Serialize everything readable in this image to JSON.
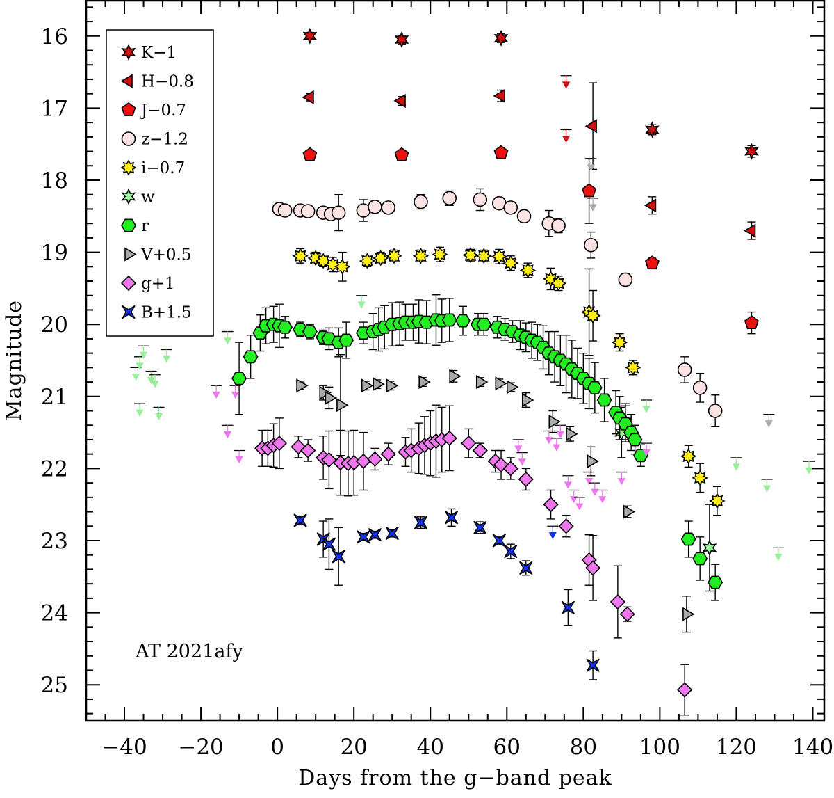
{
  "chart_data": {
    "type": "scatter",
    "title": "",
    "xlabel": "Days from the g−band peak",
    "ylabel": "Magnitude",
    "xlim": [
      -50,
      143
    ],
    "ylim": [
      25.5,
      15.5
    ],
    "y_inverted": true,
    "grid": false,
    "legend_position": "top-left",
    "annotation": "AT 2021afy",
    "x_ticks": [
      -40,
      -20,
      0,
      20,
      40,
      60,
      80,
      100,
      120,
      140
    ],
    "x_tick_labels": [
      "−40",
      "−20",
      "0",
      "20",
      "40",
      "60",
      "80",
      "100",
      "120",
      "140"
    ],
    "y_ticks": [
      16,
      17,
      18,
      19,
      20,
      21,
      22,
      23,
      24,
      25
    ],
    "y_tick_labels": [
      "16",
      "17",
      "18",
      "19",
      "20",
      "21",
      "22",
      "23",
      "24",
      "25"
    ],
    "series": [
      {
        "name": "K−1",
        "label": "K−1",
        "marker": "star6",
        "color": "#cc1111",
        "points": [
          [
            8.5,
            16.0
          ],
          [
            32.5,
            16.05
          ],
          [
            58.5,
            16.03
          ],
          [
            98,
            17.3
          ],
          [
            124,
            17.6
          ]
        ],
        "errors": [
          0.05,
          0.06,
          0.06,
          0.07,
          0.08
        ],
        "upper_limits": []
      },
      {
        "name": "H−0.8",
        "label": "H−0.8",
        "marker": "triangle-left",
        "color": "#cc1111",
        "points": [
          [
            8.5,
            16.85
          ],
          [
            32.5,
            16.9
          ],
          [
            58.5,
            16.83
          ],
          [
            82.5,
            17.25
          ],
          [
            98,
            18.35
          ],
          [
            124,
            18.7
          ]
        ],
        "errors": [
          0.05,
          0.06,
          0.08,
          0.6,
          0.12,
          0.12
        ],
        "upper_limits": [
          [
            75.5,
            16.55
          ],
          [
            75.5,
            17.3
          ]
        ]
      },
      {
        "name": "J−0.7",
        "label": "J−0.7",
        "marker": "pentagon",
        "color": "#ee1111",
        "points": [
          [
            8.5,
            17.65
          ],
          [
            32.5,
            17.65
          ],
          [
            58.5,
            17.62
          ],
          [
            81.5,
            18.15
          ],
          [
            98,
            19.15
          ],
          [
            124,
            19.98
          ]
        ],
        "errors": [
          0.03,
          0.03,
          0.04,
          0.45,
          0.08,
          0.15
        ],
        "upper_limits": []
      },
      {
        "name": "z−1.2",
        "label": "z−1.2",
        "marker": "circle",
        "color": "#fbe3e3",
        "points": [
          [
            0.5,
            18.4
          ],
          [
            2,
            18.42
          ],
          [
            6,
            18.42
          ],
          [
            8,
            18.43
          ],
          [
            12,
            18.45
          ],
          [
            14,
            18.47
          ],
          [
            16,
            18.45
          ],
          [
            22.5,
            18.42
          ],
          [
            25.5,
            18.37
          ],
          [
            29,
            18.38
          ],
          [
            37.5,
            18.3
          ],
          [
            45,
            18.25
          ],
          [
            53,
            18.27
          ],
          [
            58,
            18.32
          ],
          [
            61,
            18.38
          ],
          [
            64.5,
            18.5
          ],
          [
            71,
            18.6
          ],
          [
            73.5,
            18.63
          ],
          [
            82,
            18.9
          ],
          [
            91,
            19.38
          ],
          [
            106.5,
            20.63
          ],
          [
            110.5,
            20.88
          ],
          [
            114.5,
            21.2
          ]
        ],
        "errors": [
          0.04,
          0.04,
          0.04,
          0.05,
          0.05,
          0.06,
          0.25,
          0.15,
          0.08,
          0.07,
          0.1,
          0.1,
          0.15,
          0.08,
          0.08,
          0.08,
          0.18,
          0.1,
          0.18,
          0.08,
          0.18,
          0.2,
          0.22
        ],
        "upper_limits": []
      },
      {
        "name": "i−0.7",
        "label": "i−0.7",
        "marker": "starburst",
        "color": "#ffee11",
        "points": [
          [
            6,
            19.05
          ],
          [
            10,
            19.08
          ],
          [
            12,
            19.12
          ],
          [
            14.5,
            19.17
          ],
          [
            17,
            19.2
          ],
          [
            23.5,
            19.12
          ],
          [
            27,
            19.08
          ],
          [
            30.5,
            19.05
          ],
          [
            37.5,
            19.05
          ],
          [
            42.5,
            19.03
          ],
          [
            50.5,
            19.04
          ],
          [
            54,
            19.05
          ],
          [
            58,
            19.06
          ],
          [
            61,
            19.15
          ],
          [
            65.5,
            19.25
          ],
          [
            71.5,
            19.37
          ],
          [
            73.5,
            19.43
          ],
          [
            81.5,
            19.83
          ],
          [
            82.5,
            19.88
          ],
          [
            89.5,
            20.25
          ],
          [
            93,
            20.6
          ],
          [
            107.5,
            21.83
          ],
          [
            110.5,
            22.13
          ],
          [
            115,
            22.45
          ]
        ],
        "errors": [
          0.1,
          0.08,
          0.08,
          0.1,
          0.2,
          0.08,
          0.08,
          0.08,
          0.08,
          0.1,
          0.08,
          0.08,
          0.1,
          0.1,
          0.1,
          0.15,
          0.1,
          0.6,
          0.35,
          0.12,
          0.1,
          0.15,
          0.2,
          0.2
        ],
        "upper_limits": []
      },
      {
        "name": "w",
        "label": "w",
        "marker": "star6",
        "color": "#99ee99",
        "points": [
          [
            90,
            21.5
          ],
          [
            91,
            21.35
          ],
          [
            113,
            23.1
          ]
        ],
        "errors": [
          0.35,
          0.25,
          0.6
        ],
        "upper_limits": [
          [
            -37,
            20.6
          ],
          [
            -36,
            20.45
          ],
          [
            -35,
            20.3
          ],
          [
            -33,
            20.65
          ],
          [
            -32,
            20.7
          ],
          [
            -29,
            20.35
          ],
          [
            -36,
            21.1
          ],
          [
            -31,
            21.15
          ],
          [
            -13,
            20.1
          ],
          [
            22,
            19.6
          ],
          [
            96.5,
            21.05
          ],
          [
            120,
            21.85
          ],
          [
            128,
            22.15
          ],
          [
            131,
            23.1
          ],
          [
            139,
            21.9
          ]
        ]
      },
      {
        "name": "r",
        "label": "r",
        "marker": "hexagon",
        "color": "#22ee22",
        "points": [
          [
            -10,
            20.75
          ],
          [
            -7,
            20.45
          ],
          [
            -4.5,
            20.12
          ],
          [
            -3,
            20.02
          ],
          [
            -1,
            20.0
          ],
          [
            0.5,
            20.02
          ],
          [
            2,
            20.04
          ],
          [
            6,
            20.07
          ],
          [
            8.5,
            20.1
          ],
          [
            12,
            20.18
          ],
          [
            13.5,
            20.2
          ],
          [
            16,
            20.25
          ],
          [
            18,
            20.22
          ],
          [
            22.5,
            20.12
          ],
          [
            25,
            20.1
          ],
          [
            26.5,
            20.07
          ],
          [
            28,
            20.04
          ],
          [
            30,
            20.0
          ],
          [
            32,
            19.99
          ],
          [
            33.5,
            19.97
          ],
          [
            35.5,
            19.97
          ],
          [
            37,
            19.96
          ],
          [
            39,
            19.97
          ],
          [
            41.5,
            19.94
          ],
          [
            43,
            19.95
          ],
          [
            45,
            19.94
          ],
          [
            48.5,
            19.95
          ],
          [
            52.5,
            20.0
          ],
          [
            54,
            20.0
          ],
          [
            57.5,
            20.04
          ],
          [
            59.5,
            20.07
          ],
          [
            61.5,
            20.1
          ],
          [
            63.5,
            20.15
          ],
          [
            65,
            20.18
          ],
          [
            66.5,
            20.22
          ],
          [
            68,
            20.25
          ],
          [
            69.5,
            20.32
          ],
          [
            71,
            20.4
          ],
          [
            72.5,
            20.45
          ],
          [
            74,
            20.5
          ],
          [
            75.5,
            20.55
          ],
          [
            77,
            20.62
          ],
          [
            78.5,
            20.68
          ],
          [
            80,
            20.75
          ],
          [
            81.5,
            20.82
          ],
          [
            83,
            20.88
          ],
          [
            85.5,
            21.05
          ],
          [
            88.5,
            21.22
          ],
          [
            89.5,
            21.3
          ],
          [
            91,
            21.38
          ],
          [
            92.5,
            21.5
          ],
          [
            93.5,
            21.6
          ],
          [
            95,
            21.82
          ],
          [
            107.5,
            22.98
          ],
          [
            110.5,
            23.25
          ],
          [
            114.5,
            23.58
          ]
        ],
        "errors": [
          0.5,
          0.3,
          0.25,
          0.25,
          0.25,
          0.3,
          0.15,
          0.1,
          0.1,
          0.1,
          0.15,
          0.2,
          0.25,
          0.15,
          0.25,
          0.3,
          0.3,
          0.3,
          0.3,
          0.25,
          0.25,
          0.3,
          0.3,
          0.35,
          0.3,
          0.3,
          0.2,
          0.15,
          0.15,
          0.15,
          0.15,
          0.15,
          0.2,
          0.2,
          0.25,
          0.25,
          0.3,
          0.3,
          0.35,
          0.35,
          0.4,
          0.4,
          0.35,
          0.35,
          0.35,
          0.35,
          0.3,
          0.3,
          0.3,
          0.25,
          0.25,
          0.2,
          0.15,
          0.25,
          0.3,
          0.25
        ],
        "upper_limits": []
      },
      {
        "name": "V+0.5",
        "label": "V+0.5",
        "marker": "triangle-right",
        "color": "#aaaaaa",
        "points": [
          [
            6,
            20.85
          ],
          [
            12,
            20.95
          ],
          [
            13.5,
            21.02
          ],
          [
            16.5,
            21.12
          ],
          [
            23,
            20.85
          ],
          [
            26,
            20.83
          ],
          [
            29.5,
            20.85
          ],
          [
            38,
            20.8
          ],
          [
            46,
            20.72
          ],
          [
            53,
            20.8
          ],
          [
            58,
            20.82
          ],
          [
            61,
            20.87
          ],
          [
            65,
            21.05
          ],
          [
            72,
            21.35
          ],
          [
            76.5,
            21.52
          ],
          [
            82,
            21.9
          ],
          [
            91.5,
            22.6
          ],
          [
            107,
            24.02
          ]
        ],
        "errors": [
          0.05,
          0.1,
          0.15,
          0.7,
          0.06,
          0.06,
          0.06,
          0.06,
          0.08,
          0.06,
          0.06,
          0.06,
          0.1,
          0.15,
          0.1,
          0.2,
          0.08,
          0.25
        ],
        "upper_limits": [
          [
            82,
            17.7
          ],
          [
            82.5,
            18.25
          ],
          [
            128.5,
            21.25
          ]
        ]
      },
      {
        "name": "g+1",
        "label": "g+1",
        "marker": "diamond",
        "color": "#ee77ee",
        "points": [
          [
            -4,
            21.72
          ],
          [
            -2.5,
            21.72
          ],
          [
            -1,
            21.68
          ],
          [
            0.5,
            21.65
          ],
          [
            5.5,
            21.7
          ],
          [
            8,
            21.75
          ],
          [
            12,
            21.85
          ],
          [
            13.5,
            21.88
          ],
          [
            16.5,
            21.92
          ],
          [
            18.5,
            21.93
          ],
          [
            20,
            21.92
          ],
          [
            22.5,
            21.9
          ],
          [
            25.5,
            21.87
          ],
          [
            29,
            21.8
          ],
          [
            33.5,
            21.77
          ],
          [
            35,
            21.75
          ],
          [
            37,
            21.72
          ],
          [
            38.5,
            21.68
          ],
          [
            40,
            21.65
          ],
          [
            41.5,
            21.62
          ],
          [
            43,
            21.6
          ],
          [
            45,
            21.58
          ],
          [
            50,
            21.65
          ],
          [
            53,
            21.75
          ],
          [
            57,
            21.9
          ],
          [
            58.5,
            21.95
          ],
          [
            61,
            22.0
          ],
          [
            65,
            22.15
          ],
          [
            71.5,
            22.5
          ],
          [
            75.5,
            22.8
          ],
          [
            81.5,
            23.27
          ],
          [
            82.5,
            23.38
          ],
          [
            89,
            23.85
          ],
          [
            91.5,
            24.02
          ],
          [
            106.5,
            25.07
          ]
        ],
        "errors": [
          0.25,
          0.25,
          0.3,
          0.35,
          0.15,
          0.15,
          0.3,
          0.4,
          0.45,
          0.45,
          0.45,
          0.4,
          0.15,
          0.15,
          0.2,
          0.3,
          0.35,
          0.4,
          0.45,
          0.5,
          0.45,
          0.45,
          0.2,
          0.1,
          0.15,
          0.2,
          0.15,
          0.15,
          0.2,
          0.15,
          0.35,
          0.45,
          0.5,
          0.1,
          0.35
        ],
        "upper_limits": [
          [
            -16,
            20.85
          ],
          [
            -13,
            21.4
          ],
          [
            -11,
            20.85
          ],
          [
            -10,
            21.75
          ],
          [
            63,
            21.6
          ],
          [
            64,
            21.78
          ],
          [
            71,
            21.48
          ],
          [
            73,
            21.58
          ],
          [
            74,
            21.4
          ],
          [
            76,
            22.1
          ],
          [
            77.5,
            22.3
          ],
          [
            79,
            22.4
          ],
          [
            81.5,
            22.05
          ],
          [
            83,
            22.2
          ],
          [
            85,
            22.3
          ],
          [
            90,
            22.05
          ],
          [
            96.5,
            21.65
          ]
        ]
      },
      {
        "name": "B+1.5",
        "label": "B+1.5",
        "marker": "bowtie-x",
        "color": "#1133ee",
        "points": [
          [
            6,
            22.72
          ],
          [
            12,
            22.98
          ],
          [
            13.5,
            23.05
          ],
          [
            16,
            23.22
          ],
          [
            22.5,
            22.95
          ],
          [
            25.5,
            22.92
          ],
          [
            30,
            22.9
          ],
          [
            37.5,
            22.75
          ],
          [
            45.5,
            22.68
          ],
          [
            53,
            22.82
          ],
          [
            58,
            23.0
          ],
          [
            61,
            23.15
          ],
          [
            65,
            23.38
          ],
          [
            76,
            23.93
          ],
          [
            82.5,
            24.73
          ]
        ],
        "errors": [
          0.05,
          0.25,
          0.35,
          0.4,
          0.05,
          0.05,
          0.05,
          0.08,
          0.12,
          0.08,
          0.06,
          0.1,
          0.1,
          0.25,
          0.2
        ],
        "upper_limits": [
          [
            72,
            22.8
          ]
        ]
      }
    ]
  }
}
